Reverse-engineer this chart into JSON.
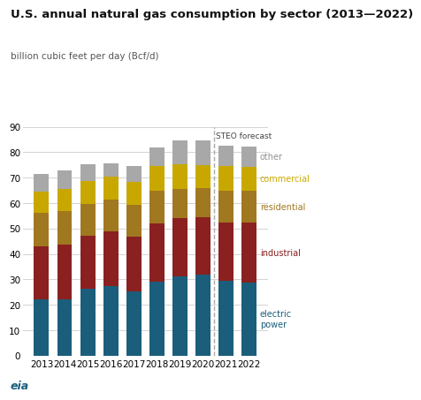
{
  "title": "U.S. annual natural gas consumption by sector (2013—2022)",
  "subtitle": "billion cubic feet per day (Bcf/d)",
  "years": [
    2013,
    2014,
    2015,
    2016,
    2017,
    2018,
    2019,
    2020,
    2021,
    2022
  ],
  "electric_power": [
    22.0,
    22.2,
    26.2,
    27.3,
    25.2,
    29.0,
    31.1,
    32.0,
    29.4,
    28.7
  ],
  "industrial": [
    21.0,
    21.5,
    21.0,
    21.7,
    21.5,
    23.0,
    23.0,
    22.5,
    23.0,
    23.5
  ],
  "residential": [
    13.0,
    13.0,
    12.5,
    12.5,
    12.5,
    13.0,
    11.5,
    11.5,
    12.5,
    12.5
  ],
  "commercial": [
    8.5,
    8.7,
    9.0,
    9.0,
    9.0,
    9.5,
    9.5,
    9.0,
    9.5,
    9.5
  ],
  "other": [
    7.0,
    7.5,
    6.5,
    5.0,
    6.5,
    7.5,
    9.5,
    9.5,
    8.0,
    8.0
  ],
  "colors": {
    "electric_power": "#1b5e7b",
    "industrial": "#8b2020",
    "residential": "#a07820",
    "commercial": "#c8a800",
    "other": "#a8a8a8"
  },
  "label_colors": {
    "electric_power": "#1b5e7b",
    "industrial": "#8b2020",
    "residential": "#a07820",
    "commercial": "#c8a800",
    "other": "#909090"
  },
  "ylim": [
    0,
    90
  ],
  "yticks": [
    0,
    10,
    20,
    30,
    40,
    50,
    60,
    70,
    80,
    90
  ],
  "forecast_after": 2020,
  "steo_label": "STEO forecast",
  "background_color": "#ffffff"
}
